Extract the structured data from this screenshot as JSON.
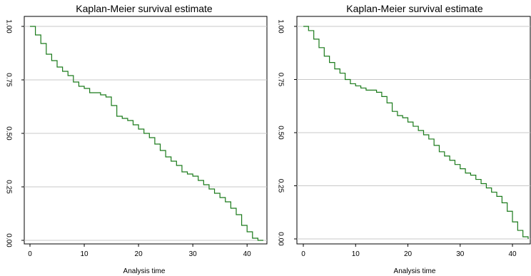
{
  "chart_data": [
    {
      "type": "line",
      "title": "Kaplan-Meier survival estimate",
      "xlabel": "Analysis time",
      "ylabel": "",
      "xlim": [
        0,
        43
      ],
      "ylim": [
        0,
        1
      ],
      "x_ticks": [
        0,
        10,
        20,
        30,
        40
      ],
      "y_ticks": [
        0.0,
        0.25,
        0.5,
        0.75,
        1.0
      ],
      "y_tick_labels": [
        "0.00",
        "0.25",
        "0.50",
        "0.75",
        "1.00"
      ],
      "grid": "horizontal",
      "line_color": "#1a7a1a",
      "series": [
        {
          "step": "post",
          "x": [
            0,
            1,
            2,
            3,
            4,
            5,
            6,
            7,
            8,
            9,
            10,
            11,
            12,
            13,
            14,
            15,
            16,
            17,
            18,
            19,
            20,
            21,
            22,
            23,
            24,
            25,
            26,
            27,
            28,
            29,
            30,
            31,
            32,
            33,
            34,
            35,
            36,
            37,
            38,
            39,
            40,
            41,
            42,
            43
          ],
          "y": [
            1.0,
            0.96,
            0.92,
            0.87,
            0.84,
            0.81,
            0.79,
            0.77,
            0.74,
            0.72,
            0.71,
            0.69,
            0.69,
            0.68,
            0.67,
            0.63,
            0.58,
            0.57,
            0.56,
            0.54,
            0.52,
            0.5,
            0.48,
            0.45,
            0.42,
            0.39,
            0.37,
            0.35,
            0.32,
            0.31,
            0.3,
            0.28,
            0.26,
            0.24,
            0.22,
            0.2,
            0.18,
            0.15,
            0.12,
            0.07,
            0.04,
            0.01,
            0.0,
            0.0
          ]
        }
      ]
    },
    {
      "type": "line",
      "title": "Kaplan-Meier survival estimate",
      "xlabel": "Analysis time",
      "ylabel": "",
      "xlim": [
        0,
        43
      ],
      "ylim": [
        0,
        1
      ],
      "x_ticks": [
        0,
        10,
        20,
        30,
        40
      ],
      "y_ticks": [
        0.0,
        0.25,
        0.5,
        0.75,
        1.0
      ],
      "y_tick_labels": [
        "0.00",
        "0.25",
        "0.50",
        "0.75",
        "1.00"
      ],
      "grid": "horizontal",
      "line_color": "#1a7a1a",
      "series": [
        {
          "step": "post",
          "x": [
            0,
            1,
            2,
            3,
            4,
            5,
            6,
            7,
            8,
            9,
            10,
            11,
            12,
            13,
            14,
            15,
            16,
            17,
            18,
            19,
            20,
            21,
            22,
            23,
            24,
            25,
            26,
            27,
            28,
            29,
            30,
            31,
            32,
            33,
            34,
            35,
            36,
            37,
            38,
            39,
            40,
            41,
            42,
            43
          ],
          "y": [
            1.0,
            0.98,
            0.94,
            0.9,
            0.86,
            0.83,
            0.8,
            0.78,
            0.75,
            0.73,
            0.72,
            0.71,
            0.7,
            0.7,
            0.69,
            0.67,
            0.64,
            0.6,
            0.58,
            0.57,
            0.55,
            0.53,
            0.51,
            0.49,
            0.47,
            0.44,
            0.41,
            0.39,
            0.37,
            0.35,
            0.33,
            0.31,
            0.3,
            0.28,
            0.26,
            0.24,
            0.22,
            0.2,
            0.17,
            0.13,
            0.08,
            0.04,
            0.01,
            0.0
          ]
        }
      ]
    }
  ]
}
